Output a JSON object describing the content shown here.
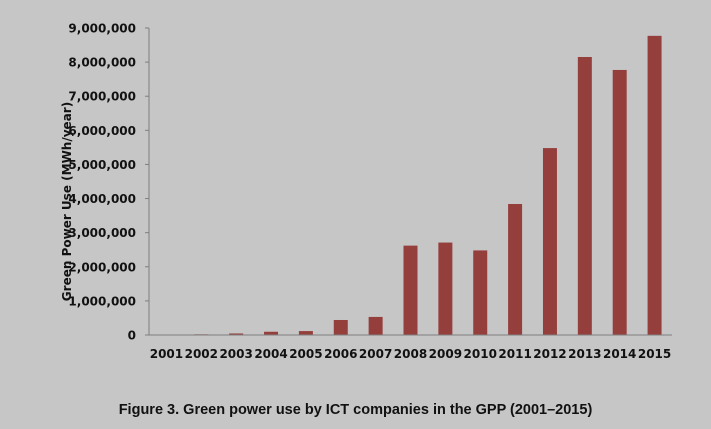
{
  "chart_data": {
    "type": "bar",
    "title": "",
    "xlabel": "",
    "ylabel": "Green Power Use (MWh/year)",
    "categories": [
      "2001",
      "2002",
      "2003",
      "2004",
      "2005",
      "2006",
      "2007",
      "2008",
      "2009",
      "2010",
      "2011",
      "2012",
      "2013",
      "2014",
      "2015"
    ],
    "values": [
      5000,
      20000,
      45000,
      95000,
      115000,
      440000,
      530000,
      2620000,
      2710000,
      2480000,
      3840000,
      5480000,
      8150000,
      7770000,
      8770000
    ],
    "ylim": [
      0,
      9000000
    ],
    "yticks": [
      0,
      1000000,
      2000000,
      3000000,
      4000000,
      5000000,
      6000000,
      7000000,
      8000000,
      9000000
    ],
    "ytick_labels": [
      "0",
      "1,000,000",
      "2,000,000",
      "3,000,000",
      "4,000,000",
      "5,000,000",
      "6,000,000",
      "7,000,000",
      "8,000,000",
      "9,000,000"
    ],
    "grid": false,
    "legend": "none",
    "bar_color": "#953f3c",
    "axis_color": "#7f7f7f",
    "background_color": "#c6c6c6"
  },
  "caption": "Figure 3. Green power use by ICT companies in the GPP (2001–2015)"
}
